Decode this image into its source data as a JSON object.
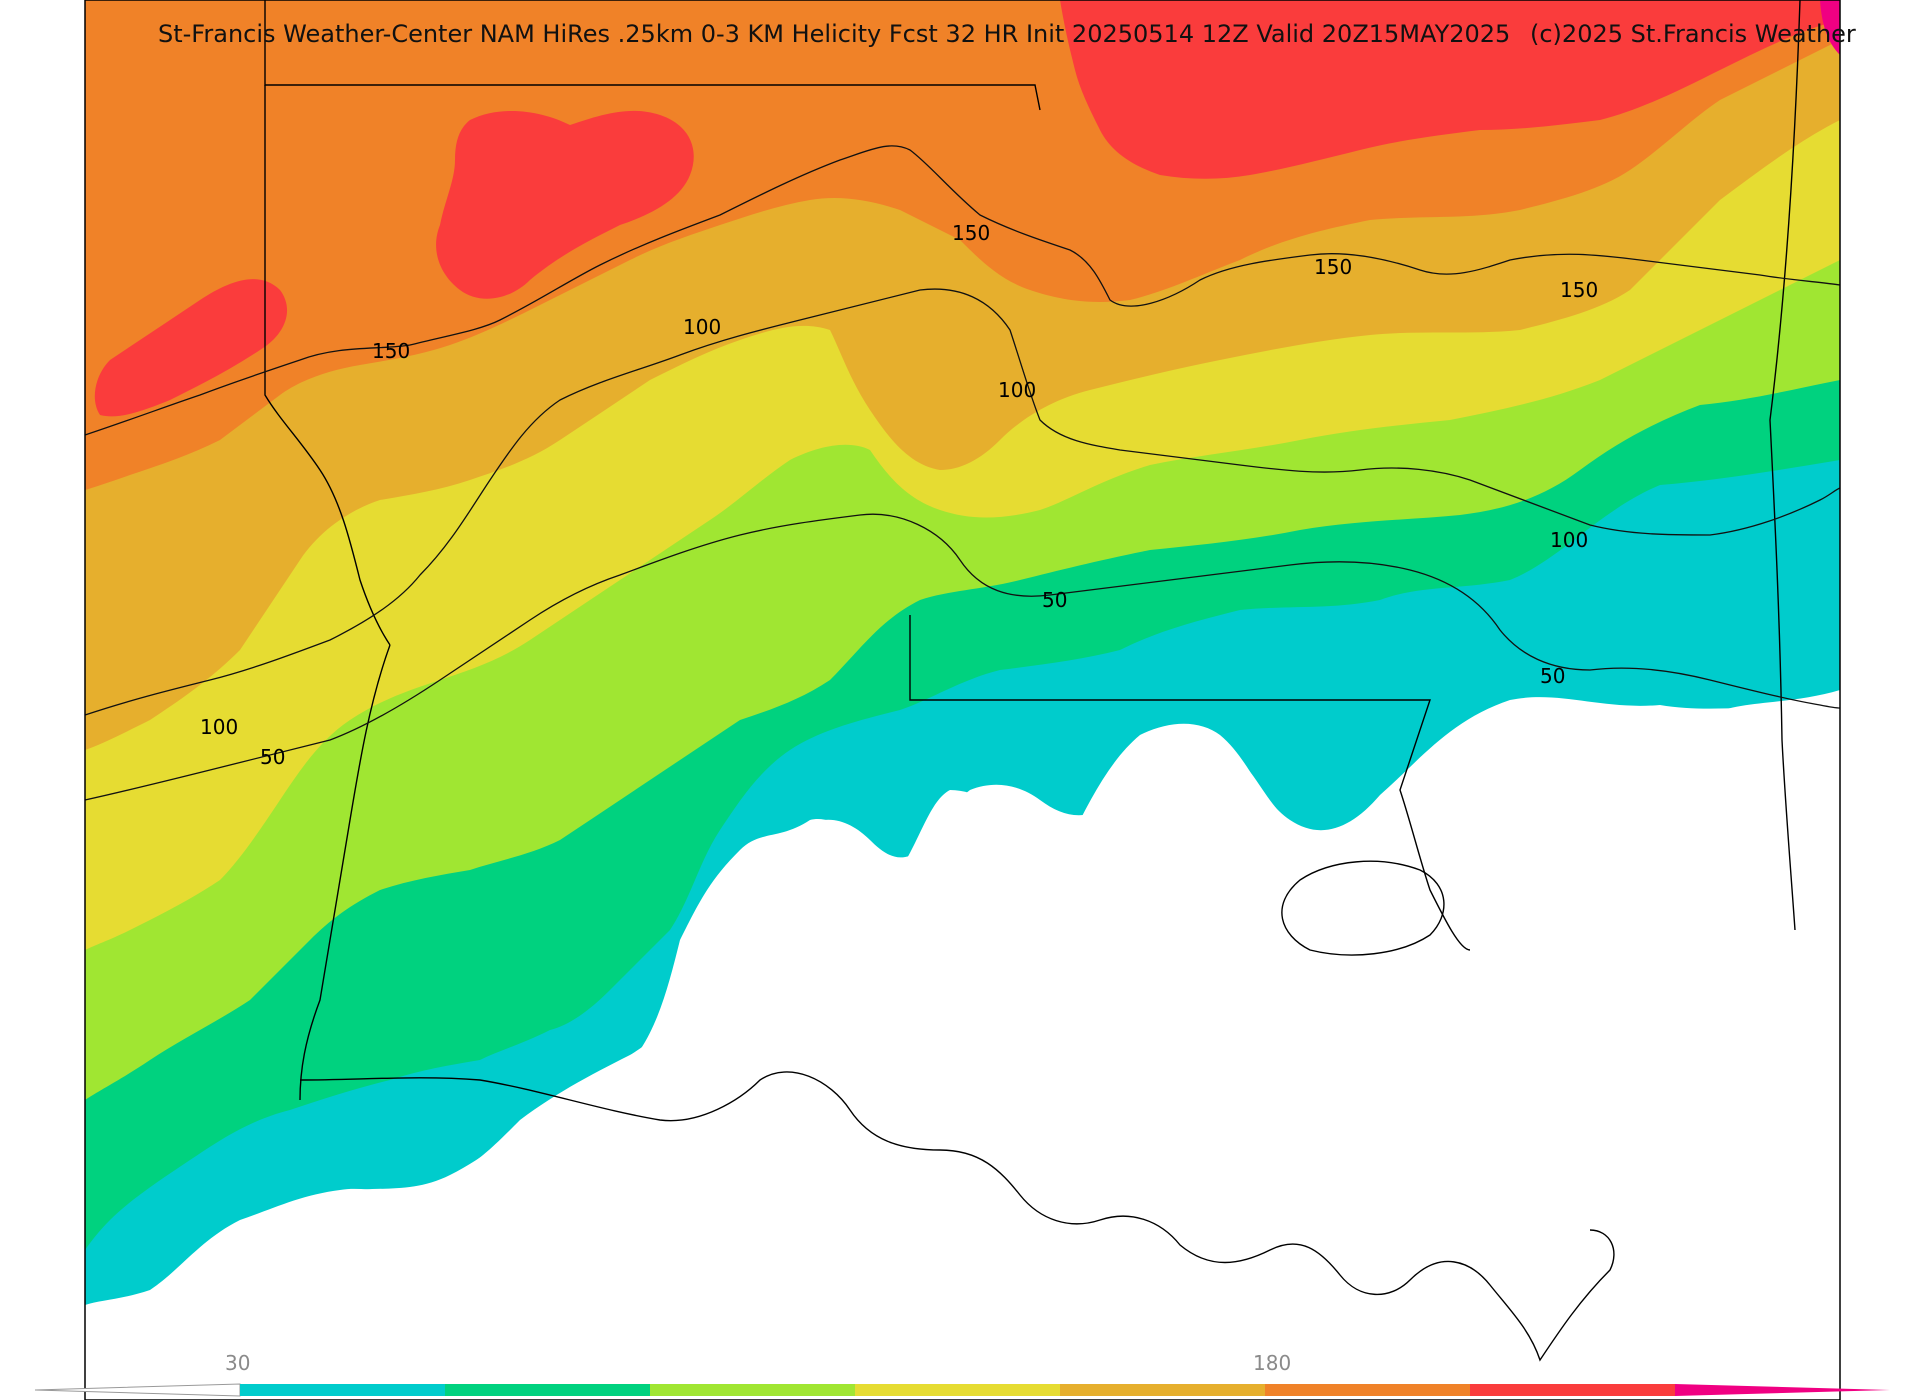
{
  "header": {
    "title": "St-Francis Weather-Center NAM HiRes .25km 0-3 KM Helicity Fcst 32 HR Init 20250514 12Z  Valid 20Z15MAY2025",
    "copyright": "(c)2025 St.Francis Weather"
  },
  "contour_labels": [
    "150",
    "150",
    "150",
    "150",
    "100",
    "100",
    "100",
    "100",
    "50",
    "50",
    "50"
  ],
  "legend": {
    "tick_low": "30",
    "tick_high": "180",
    "colors": [
      "#00cccc",
      "#00d27f",
      "#a0e632",
      "#e6dc32",
      "#e6af2d",
      "#f08228",
      "#fa3c3c",
      "#f00082"
    ]
  }
}
